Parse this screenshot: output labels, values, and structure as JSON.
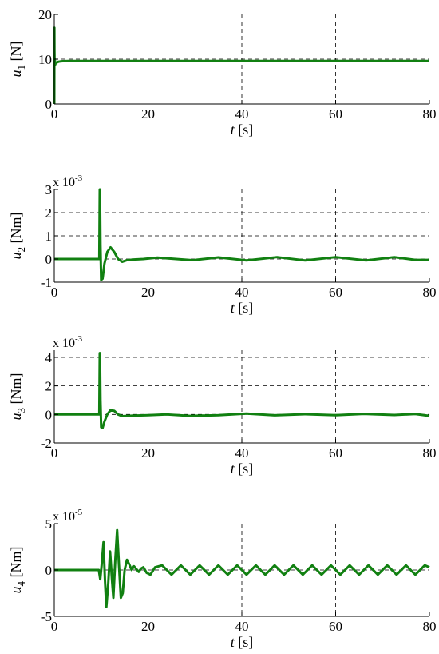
{
  "chart_data": [
    {
      "type": "line",
      "xlabel": {
        "var": "t",
        "unit": "[s]"
      },
      "ylabel": {
        "var": "u",
        "sub": "1",
        "unit": "[N]"
      },
      "exponent": null,
      "xlim": [
        0,
        80
      ],
      "ylim": [
        0,
        20
      ],
      "xticks": [
        "0",
        "20",
        "40",
        "60",
        "80"
      ],
      "yticks": [
        "0",
        "10",
        "20"
      ],
      "ytick_values": [
        0,
        10,
        20
      ],
      "grid": true,
      "color": "#118011",
      "series": [
        {
          "x": [
            0,
            0.02,
            0.04,
            0.08,
            0.12,
            0.2,
            0.3,
            0.45,
            0.6,
            0.8,
            1.0,
            1.3,
            1.8,
            3,
            5,
            10,
            80
          ],
          "y": [
            0,
            17,
            12,
            9,
            10,
            8.8,
            9.1,
            9.2,
            9.3,
            9.4,
            9.45,
            9.5,
            9.55,
            9.6,
            9.6,
            9.6,
            9.6
          ]
        }
      ]
    },
    {
      "type": "line",
      "xlabel": {
        "var": "t",
        "unit": "[s]"
      },
      "ylabel": {
        "var": "u",
        "sub": "2",
        "unit": "[Nm]"
      },
      "exponent": {
        "base": "x 10",
        "power": "-3"
      },
      "xlim": [
        0,
        80
      ],
      "ylim": [
        -1,
        3
      ],
      "xticks": [
        "0",
        "20",
        "40",
        "60",
        "80"
      ],
      "yticks": [
        "-1",
        "0",
        "1",
        "2",
        "3"
      ],
      "ytick_values": [
        -1,
        0,
        1,
        2,
        3
      ],
      "grid": true,
      "color": "#118011",
      "series": [
        {
          "x": [
            0,
            9.6,
            9.7,
            9.75,
            9.85,
            10.0,
            10.3,
            10.7,
            11.3,
            12.0,
            12.8,
            13.6,
            14.5,
            15.5,
            17,
            19,
            22,
            26,
            29.5,
            35,
            41,
            47.5,
            53.5,
            60,
            66.5,
            72.5,
            77,
            80
          ],
          "y": [
            0,
            0,
            3,
            3,
            0.6,
            -0.9,
            -0.85,
            -0.2,
            0.3,
            0.5,
            0.3,
            0.0,
            -0.12,
            -0.05,
            -0.02,
            0.0,
            0.06,
            0.0,
            -0.05,
            0.07,
            -0.06,
            0.08,
            -0.06,
            0.08,
            -0.06,
            0.08,
            -0.04,
            -0.04
          ]
        }
      ]
    },
    {
      "type": "line",
      "xlabel": {
        "var": "t",
        "unit": "[s]"
      },
      "ylabel": {
        "var": "u",
        "sub": "3",
        "unit": "[Nm]"
      },
      "exponent": {
        "base": "x 10",
        "power": "-3"
      },
      "xlim": [
        0,
        80
      ],
      "ylim": [
        -2,
        4.5
      ],
      "xticks": [
        "0",
        "20",
        "40",
        "60",
        "80"
      ],
      "yticks": [
        "-2",
        "0",
        "2",
        "4"
      ],
      "ytick_values": [
        -2,
        0,
        2,
        4
      ],
      "grid": true,
      "color": "#118011",
      "series": [
        {
          "x": [
            0,
            9.6,
            9.7,
            9.75,
            9.85,
            10.0,
            10.3,
            10.7,
            11.3,
            12.0,
            12.8,
            13.6,
            14.5,
            15.5,
            17,
            20,
            24,
            29,
            35,
            41,
            47,
            53.5,
            60,
            66,
            72.5,
            77,
            80
          ],
          "y": [
            0,
            0,
            4.3,
            4.3,
            1.0,
            -0.9,
            -0.95,
            -0.5,
            0.0,
            0.3,
            0.25,
            0.0,
            -0.12,
            -0.1,
            -0.08,
            -0.05,
            0.0,
            -0.1,
            -0.05,
            0.06,
            -0.06,
            0.02,
            -0.05,
            0.04,
            -0.04,
            0.03,
            -0.1
          ]
        }
      ]
    },
    {
      "type": "line",
      "xlabel": {
        "var": "t",
        "unit": "[s]"
      },
      "ylabel": {
        "var": "u",
        "sub": "4",
        "unit": "[Nm]"
      },
      "exponent": {
        "base": "x 10",
        "power": "-5"
      },
      "xlim": [
        0,
        80
      ],
      "ylim": [
        -5,
        5
      ],
      "xticks": [
        "0",
        "20",
        "40",
        "60",
        "80"
      ],
      "yticks": [
        "-5",
        "0",
        "5"
      ],
      "ytick_values": [
        -5,
        0,
        5
      ],
      "grid": true,
      "color": "#118011",
      "series": [
        {
          "x": [
            0,
            9.5,
            9.8,
            10.1,
            10.5,
            10.8,
            11.1,
            11.5,
            11.9,
            12.3,
            12.6,
            13.0,
            13.4,
            13.8,
            14.2,
            14.6,
            15.0,
            15.5,
            16.0,
            16.5,
            17.0,
            17.5,
            18.0,
            18.5,
            19.0,
            19.7,
            20.5,
            21.5,
            23.0,
            25.0,
            27.0,
            29.0,
            31.0,
            33.0,
            35.0,
            37.0,
            39.0,
            41.0,
            43.0,
            45.0,
            47.0,
            49.0,
            51.0,
            53.0,
            55.0,
            57.0,
            59.0,
            61.0,
            63.0,
            65.0,
            67.0,
            69.0,
            71.0,
            73.0,
            75.0,
            77.0,
            79.0,
            80.0
          ],
          "y": [
            0,
            0,
            -1.0,
            0.5,
            3.0,
            -1.0,
            -4.0,
            -1.5,
            2.0,
            -1.0,
            -3.0,
            1.0,
            4.3,
            0.5,
            -3.0,
            -2.5,
            0.0,
            1.1,
            0.6,
            0.0,
            0.4,
            0.1,
            -0.2,
            0.15,
            0.3,
            -0.3,
            -0.5,
            0.3,
            0.5,
            -0.5,
            0.5,
            -0.5,
            0.5,
            -0.5,
            0.5,
            -0.5,
            0.5,
            -0.5,
            0.5,
            -0.5,
            0.5,
            -0.5,
            0.5,
            -0.5,
            0.5,
            -0.5,
            0.5,
            -0.5,
            0.5,
            -0.5,
            0.5,
            -0.5,
            0.5,
            -0.5,
            0.5,
            -0.5,
            0.5,
            0.3
          ]
        }
      ]
    }
  ]
}
